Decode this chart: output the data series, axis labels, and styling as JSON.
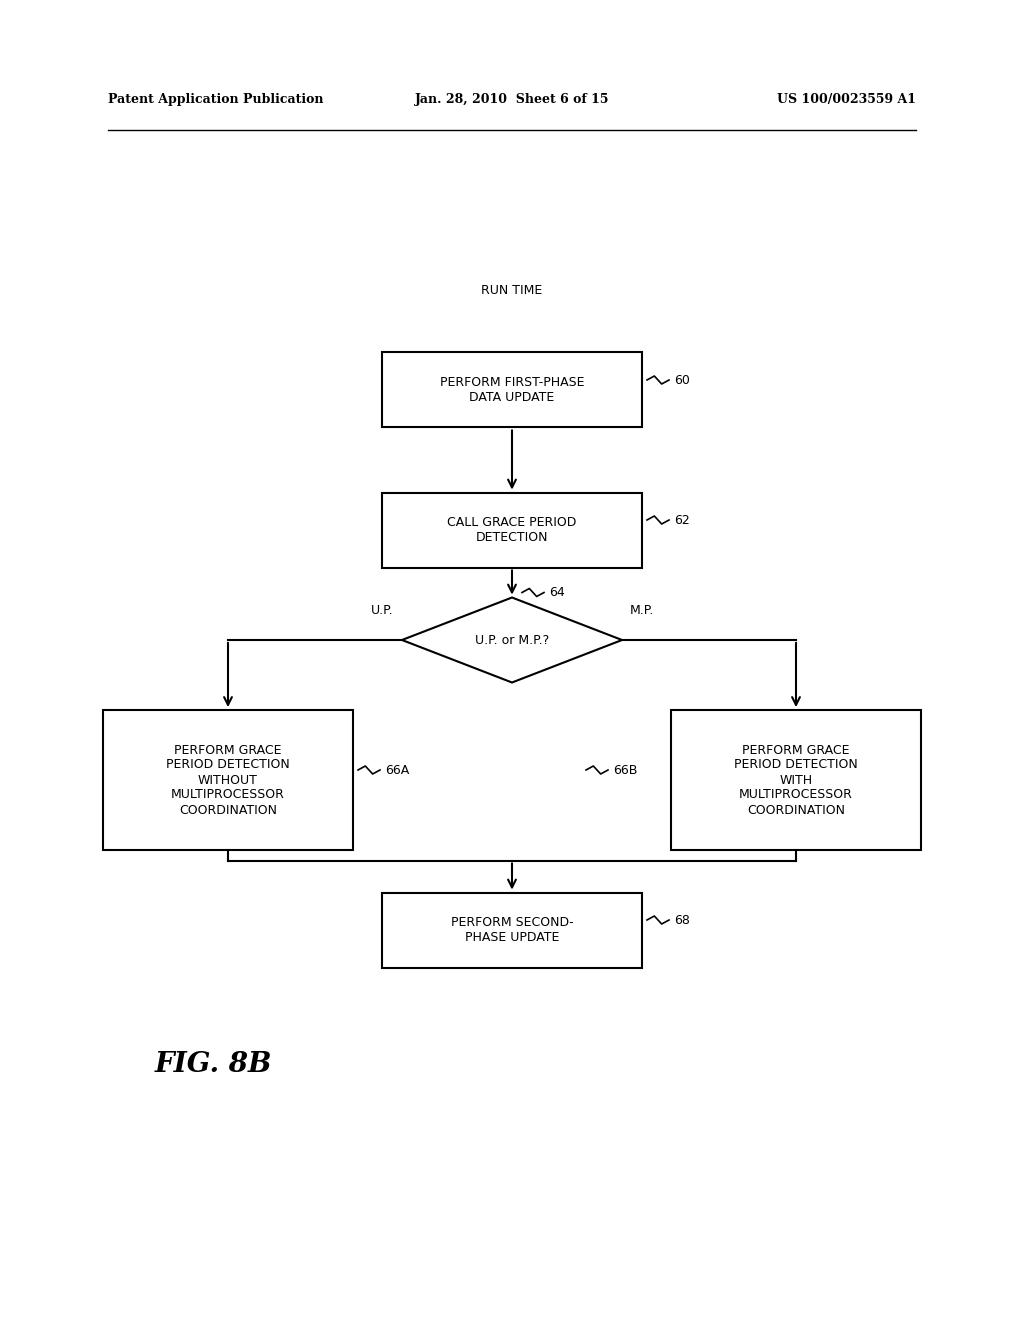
{
  "bg_color": "#ffffff",
  "header_left": "Patent Application Publication",
  "header_mid": "Jan. 28, 2010  Sheet 6 of 15",
  "header_right": "US 100/0023559 A1",
  "fig_label": "FIG. 8B",
  "runtime_label": "RUN TIME",
  "box60_text": "PERFORM FIRST-PHASE\nDATA UPDATE",
  "box60_label": "60",
  "box62_text": "CALL GRACE PERIOD\nDETECTION",
  "box62_label": "62",
  "diamond64_text": "U.P. or M.P.?",
  "diamond64_label": "64",
  "up_label": "U.P.",
  "mp_label": "M.P.",
  "box66a_text": "PERFORM GRACE\nPERIOD DETECTION\nWITHOUT\nMULTIPROCESSOR\nCOORDINATION",
  "box66a_label": "66A",
  "box66b_text": "PERFORM GRACE\nPERIOD DETECTION\nWITH\nMULTIPROCESSOR\nCOORDINATION",
  "box66b_label": "66B",
  "box68_text": "PERFORM SECOND-\nPHASE UPDATE",
  "box68_label": "68"
}
